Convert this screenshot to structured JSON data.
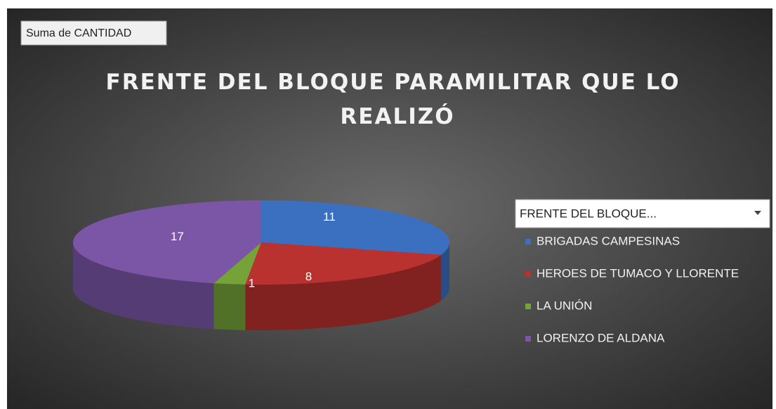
{
  "chart_data": {
    "type": "pie",
    "field_button": "Suma de CANTIDAD",
    "title": "FRENTE DEL BLOQUE PARAMILITAR QUE LO REALIZÓ",
    "legend_title": "FRENTE DEL BLOQUE...",
    "categories": [
      "BRIGADAS CAMPESINAS",
      "HEROES DE TUMACO Y LLORENTE",
      "LA UNIÓN",
      "LORENZO DE ALDANA"
    ],
    "values": [
      11,
      8,
      1,
      17
    ],
    "colors": [
      "#3b6fc0",
      "#b93230",
      "#76a23a",
      "#7b56a6"
    ],
    "legend": "right"
  }
}
